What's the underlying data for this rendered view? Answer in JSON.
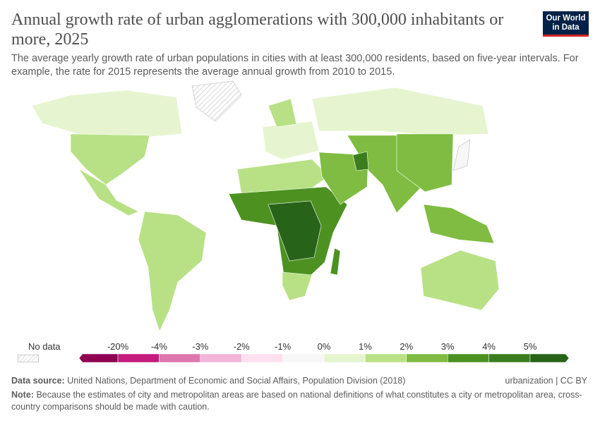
{
  "header": {
    "title": "Annual growth rate of urban agglomerations with 300,000 inhabitants or more, 2025",
    "subtitle": "The average yearly growth rate of urban populations in cities with at least 300,000 residents, based on five-year intervals. For example, the rate for 2015 represents the average annual growth from 2010 to 2015.",
    "logo": [
      "Our World",
      "in Data"
    ]
  },
  "chart_data": {
    "type": "choropleth",
    "year": "2025",
    "legend": {
      "no_data_label": "No data",
      "tick_labels": [
        "-20%",
        "-4%",
        "-3%",
        "-2%",
        "-1%",
        "0%",
        "1%",
        "2%",
        "3%",
        "4%",
        "5%"
      ],
      "bin_colors": [
        "#8e0152",
        "#c51b7d",
        "#de77ae",
        "#f1b6da",
        "#fde0ef",
        "#f7f7f7",
        "#e6f5d0",
        "#b8e186",
        "#7fbc41",
        "#4d9221",
        "#3b7d1e",
        "#276419"
      ]
    },
    "regions": [
      {
        "name": "Canada",
        "bin": "0-1%",
        "color": "#e6f5d0"
      },
      {
        "name": "Greenland",
        "bin": "No data",
        "color": "hatch"
      },
      {
        "name": "United States",
        "bin": "1-2%",
        "color": "#b8e186"
      },
      {
        "name": "Central America",
        "bin": "1-2%",
        "color": "#b8e186"
      },
      {
        "name": "South America",
        "bin": "1-2%",
        "color": "#b8e186"
      },
      {
        "name": "Europe",
        "bin": "0-1%",
        "color": "#e6f5d0"
      },
      {
        "name": "Scandinavia",
        "bin": "1-2%",
        "color": "#b8e186"
      },
      {
        "name": "Russia",
        "bin": "0-1%",
        "color": "#e6f5d0"
      },
      {
        "name": "North Africa",
        "bin": "1-2%",
        "color": "#b8e186"
      },
      {
        "name": "Sub-Saharan Africa",
        "bin": "3-4%",
        "color": "#4d9221"
      },
      {
        "name": "Central Africa",
        "bin": ">5%",
        "color": "#276419"
      },
      {
        "name": "Southern Africa",
        "bin": "1-2%",
        "color": "#b8e186"
      },
      {
        "name": "Madagascar",
        "bin": "3-4%",
        "color": "#4d9221"
      },
      {
        "name": "Middle East",
        "bin": "2-3%",
        "color": "#7fbc41"
      },
      {
        "name": "South Asia",
        "bin": "2-3%",
        "color": "#7fbc41"
      },
      {
        "name": "Afghanistan",
        "bin": "4-5%",
        "color": "#3b7d1e"
      },
      {
        "name": "China",
        "bin": "2-3%",
        "color": "#7fbc41"
      },
      {
        "name": "Japan",
        "bin": "-1-0%",
        "color": "#f7f7f7"
      },
      {
        "name": "Southeast Asia",
        "bin": "2-3%",
        "color": "#7fbc41"
      },
      {
        "name": "Australia",
        "bin": "1-2%",
        "color": "#b8e186"
      }
    ]
  },
  "footer": {
    "source_label": "Data source:",
    "source": "United Nations, Department of Economic and Social Affairs, Population Division (2018)",
    "license": "urbanization | CC BY",
    "note_label": "Note:",
    "note": "Because the estimates of city and metropolitan areas are based on national definitions of what constitutes a city or metropolitan area, cross-country comparisons should be made with caution."
  }
}
